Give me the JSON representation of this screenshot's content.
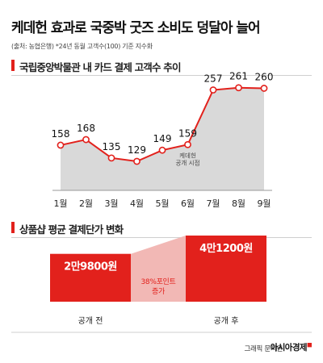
{
  "headline": "케데헌 효과로 국중박 굿즈 소비도 덩달아 늘어",
  "source": "(출처: 농협은행) *24년 동월 고객수(100) 기준 지수화",
  "credit": "그래픽 문지원",
  "brand": "아시아경제",
  "colors": {
    "accent": "#e2211c",
    "area": "#d9d9d9",
    "pink": "#f2b8b5"
  },
  "chart_data": [
    {
      "type": "area",
      "title": "국립중앙박물관 내 카드 결제 고객수 추이",
      "categories": [
        "1월",
        "2월",
        "3월",
        "4월",
        "5월",
        "6월",
        "7월",
        "8월",
        "9월"
      ],
      "values": [
        158,
        168,
        135,
        129,
        149,
        159,
        257,
        261,
        260
      ],
      "annotation": {
        "category": "6월",
        "text": [
          "케데헌",
          "공개 시점"
        ]
      }
    },
    {
      "type": "bar",
      "title": "상품샵 평균 결제단가 변화",
      "categories": [
        "공개 전",
        "공개 후"
      ],
      "values": [
        29800,
        41200
      ],
      "value_labels": [
        "2만9800원",
        "4만1200원"
      ],
      "change_label": [
        "38%포인트",
        "증가"
      ]
    }
  ]
}
